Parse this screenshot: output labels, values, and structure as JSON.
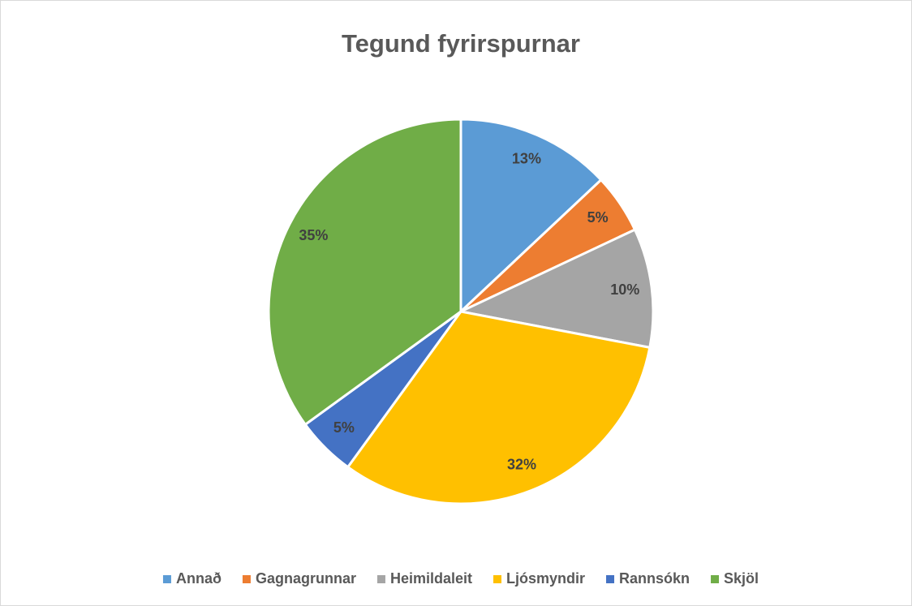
{
  "chart_data": {
    "type": "pie",
    "title": "Tegund fyrirspurnar",
    "categories": [
      "Annað",
      "Gagnagrunnar",
      "Heimildaleit",
      "Ljósmyndir",
      "Rannsókn",
      "Skjöl"
    ],
    "values": [
      13,
      5,
      10,
      32,
      5,
      35
    ],
    "value_labels": [
      "13%",
      "5%",
      "10%",
      "32%",
      "5%",
      "35%"
    ],
    "colors": [
      "#5b9bd5",
      "#ed7d31",
      "#a5a5a5",
      "#ffc000",
      "#4472c4",
      "#70ad47"
    ],
    "legend": "bottom"
  }
}
